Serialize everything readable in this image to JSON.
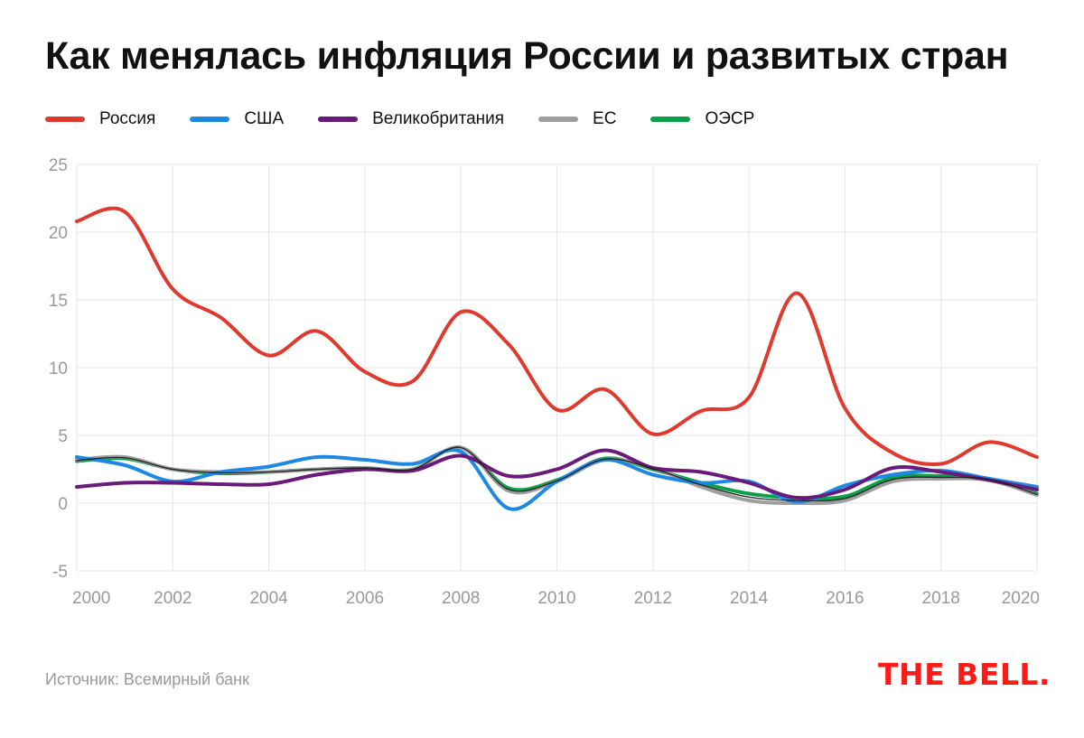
{
  "title": "Как менялась инфляция России и развитых стран",
  "source": "Источник: Всемирный банк",
  "logo_text": "THE BELL.",
  "chart_data": {
    "type": "line",
    "title": "Как менялась инфляция России и развитых стран",
    "xlabel": "",
    "ylabel": "",
    "x": [
      2000,
      2001,
      2002,
      2003,
      2004,
      2005,
      2006,
      2007,
      2008,
      2009,
      2010,
      2011,
      2012,
      2013,
      2014,
      2015,
      2016,
      2017,
      2018,
      2019,
      2020
    ],
    "x_ticks": [
      "2000",
      "2002",
      "2004",
      "2006",
      "2008",
      "2010",
      "2012",
      "2014",
      "2016",
      "2018",
      "2020"
    ],
    "y_ticks": [
      "25",
      "20",
      "15",
      "10",
      "5",
      "0",
      "-5"
    ],
    "xlim": [
      2000,
      2020
    ],
    "ylim": [
      -5,
      25
    ],
    "grid": true,
    "legend_position": "top-left",
    "series": [
      {
        "name": "Россия",
        "color": "#e03a2f",
        "values": [
          20.8,
          21.5,
          15.8,
          13.7,
          10.9,
          12.7,
          9.7,
          9.0,
          14.1,
          11.7,
          6.9,
          8.4,
          5.1,
          6.8,
          7.8,
          15.5,
          7.0,
          3.7,
          2.9,
          4.5,
          3.4
        ]
      },
      {
        "name": "США",
        "color": "#1e88e5",
        "values": [
          3.4,
          2.8,
          1.6,
          2.3,
          2.7,
          3.4,
          3.2,
          2.9,
          3.8,
          -0.4,
          1.6,
          3.2,
          2.1,
          1.5,
          1.6,
          0.1,
          1.3,
          2.1,
          2.4,
          1.8,
          1.2
        ]
      },
      {
        "name": "Великобритания",
        "color": "#6a1b7a",
        "values": [
          1.2,
          1.5,
          1.5,
          1.4,
          1.4,
          2.1,
          2.5,
          2.4,
          3.5,
          2.0,
          2.5,
          3.9,
          2.6,
          2.3,
          1.5,
          0.4,
          1.0,
          2.6,
          2.3,
          1.7,
          1.0
        ]
      },
      {
        "name": "ЕС",
        "color": "#9e9e9e",
        "values": [
          3.2,
          3.4,
          2.5,
          2.3,
          2.3,
          2.5,
          2.6,
          2.5,
          4.1,
          0.9,
          1.6,
          3.2,
          2.6,
          1.2,
          0.2,
          0.0,
          0.2,
          1.6,
          1.8,
          1.7,
          0.6
        ]
      },
      {
        "name": "ОЭСР",
        "color": "#0aa04a",
        "values": [
          3.1,
          3.3,
          2.5,
          2.2,
          2.3,
          2.5,
          2.6,
          2.5,
          4.1,
          1.1,
          1.7,
          3.3,
          2.5,
          1.5,
          0.7,
          0.4,
          0.5,
          1.9,
          2.0,
          1.8,
          0.7
        ]
      }
    ]
  }
}
